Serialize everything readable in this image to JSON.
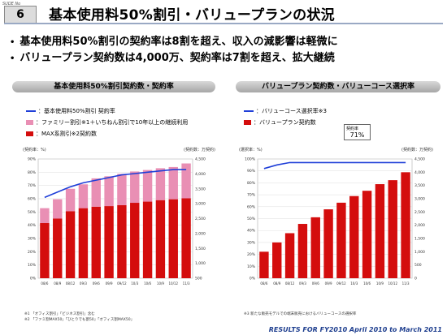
{
  "header": {
    "slide_label": "SUDE No",
    "slide_number": "6",
    "title": "基本使用料50%割引・バリュープランの状況"
  },
  "bullets": [
    "基本使用料50%割引の契約率は8割を超え、収入の減影響は軽微に",
    "バリュープラン契約数は4,000万、契約率は7割を超え、拡大継続"
  ],
  "bullet_marker": "•",
  "footer": "RESULTS FOR FY2010   April 2010 to March 2011",
  "colors": {
    "bar_red": "#d40d0d",
    "bar_pink": "#e98fb4",
    "line_blue": "#1f3fd8"
  },
  "left_panel": {
    "header": "基本使用料50%割引契約数・契約率",
    "legend": [
      {
        "label": "：基本使用料50%割引 契約率",
        "kind": "line"
      },
      {
        "label": "：ファミリー割引※1＋いちねん割引で10年以上の継続利用",
        "kind": "pink"
      },
      {
        "label": "：MAX系割引※2契約数",
        "kind": "red"
      }
    ],
    "left_unit": "(契約率：%)",
    "right_unit": "(契約数：万契約)",
    "footnotes": [
      "※1 「オフィス割引」「ビジネス割引」含む",
      "※2 「ファミ割MAX50」「ひとりでも割50」「オフィス割MAX50」"
    ]
  },
  "right_panel": {
    "header": "バリュープラン契約数・バリューコース選択率",
    "legend": [
      {
        "label": "：バリューコース選択率※3",
        "kind": "line"
      },
      {
        "label": "：バリュープラン契約数",
        "kind": "red"
      }
    ],
    "left_unit": "(選択率：%)",
    "right_unit": "(契約数：万契約)",
    "callout_label": "契約率",
    "callout_value": "71%",
    "footnotes": [
      "※3 新たな販売モデルでの端末販売におけるバリューコースの選択率"
    ]
  },
  "chart_data": [
    {
      "type": "bar",
      "title": "基本使用料50%割引契約数・契約率",
      "categories": [
        "08/6",
        "08/9",
        "08/12",
        "09/3",
        "09/6",
        "09/9",
        "09/12",
        "10/3",
        "10/6",
        "10/9",
        "10/12",
        "11/3"
      ],
      "series": [
        {
          "name": "MAX系割引契約数",
          "kind": "bar",
          "axis": "right",
          "values": [
            2350,
            2500,
            2750,
            2850,
            2900,
            2920,
            2950,
            3030,
            3070,
            3120,
            3150,
            3180
          ]
        },
        {
          "name": "ファミリー割引+いちねん割引で10年以上の継続利用",
          "kind": "stacked_bar",
          "axis": "right",
          "values": [
            500,
            650,
            750,
            800,
            950,
            1000,
            1050,
            1050,
            1060,
            1070,
            1080,
            1170
          ]
        },
        {
          "name": "基本使用料50%割引 契約率",
          "kind": "line",
          "axis": "left",
          "values": [
            61,
            65,
            69,
            72,
            74,
            76,
            78,
            79,
            80,
            81,
            82,
            82
          ]
        }
      ],
      "left_axis": {
        "ylim": [
          0,
          90
        ],
        "ticks": [
          0,
          10,
          20,
          30,
          40,
          50,
          60,
          70,
          80,
          90
        ]
      },
      "right_axis": {
        "ylim": [
          500,
          4500
        ],
        "ticks": [
          500,
          1000,
          1500,
          2000,
          2500,
          3000,
          3500,
          4000,
          4500
        ]
      }
    },
    {
      "type": "bar",
      "title": "バリュープラン契約数・バリューコース選択率",
      "categories": [
        "08/6",
        "08/9",
        "08/12",
        "09/3",
        "09/6",
        "09/9",
        "09/12",
        "10/3",
        "10/6",
        "10/9",
        "10/12",
        "11/3"
      ],
      "series": [
        {
          "name": "バリュープラン契約数",
          "kind": "bar",
          "axis": "right",
          "values": [
            1000,
            1350,
            1700,
            2050,
            2300,
            2600,
            2850,
            3100,
            3300,
            3550,
            3700,
            4000
          ]
        },
        {
          "name": "バリューコース選択率",
          "kind": "line",
          "axis": "left",
          "values": [
            92,
            95,
            97,
            97,
            97,
            97,
            97,
            97,
            97,
            97,
            97,
            97
          ]
        }
      ],
      "left_axis": {
        "ylim": [
          0,
          100
        ],
        "ticks": [
          0,
          10,
          20,
          30,
          40,
          50,
          60,
          70,
          80,
          90,
          100
        ]
      },
      "right_axis": {
        "ylim": [
          0,
          4500
        ],
        "ticks": [
          0,
          500,
          1000,
          1500,
          2000,
          2500,
          3000,
          3500,
          4000,
          4500
        ]
      }
    }
  ]
}
